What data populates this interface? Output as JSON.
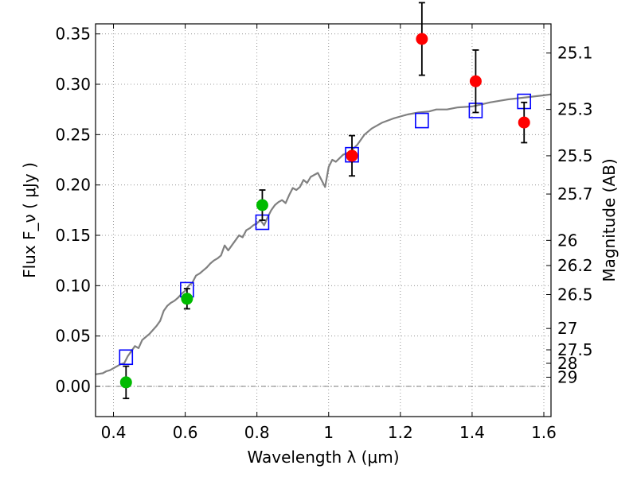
{
  "chart_data": {
    "type": "scatter",
    "xlabel": "Wavelength  λ (μm)",
    "ylabel": "Flux  F_ν  ( μJy )",
    "y2label": "Magnitude (AB)",
    "xlim": [
      0.35,
      1.62
    ],
    "ylim": [
      -0.03,
      0.36
    ],
    "grid": true,
    "x_ticks": [
      0.4,
      0.6,
      0.8,
      1.0,
      1.2,
      1.4,
      1.6
    ],
    "x_tick_labels": [
      "0.4",
      "0.6",
      "0.8",
      "1",
      "1.2",
      "1.4",
      "1.6"
    ],
    "y_ticks": [
      0.0,
      0.05,
      0.1,
      0.15,
      0.2,
      0.25,
      0.3,
      0.35
    ],
    "y_tick_labels": [
      "0.00",
      "0.05",
      "0.10",
      "0.15",
      "0.20",
      "0.25",
      "0.30",
      "0.35"
    ],
    "magnitude_ticks": [
      {
        "label": "25.1",
        "flux": 0.331
      },
      {
        "label": "25.3",
        "flux": 0.275
      },
      {
        "label": "25.5",
        "flux": 0.229
      },
      {
        "label": "25.7",
        "flux": 0.191
      },
      {
        "label": "26",
        "flux": 0.145
      },
      {
        "label": "26.2",
        "flux": 0.12
      },
      {
        "label": "26.5",
        "flux": 0.0912
      },
      {
        "label": "27",
        "flux": 0.0575
      },
      {
        "label": "27.5",
        "flux": 0.0363
      },
      {
        "label": "28",
        "flux": 0.0229
      },
      {
        "label": "29",
        "flux": 0.0091
      }
    ],
    "colors": {
      "model_line": "#808080",
      "model_squares": "#0000ff",
      "green_points": "#00bb00",
      "red_points": "#ff0000",
      "errorbars": "#000000",
      "grid": "#808080"
    },
    "series": [
      {
        "kind": "line",
        "x": [
          0.35,
          0.37,
          0.38,
          0.39,
          0.4,
          0.41,
          0.42,
          0.43,
          0.44,
          0.45,
          0.46,
          0.47,
          0.48,
          0.49,
          0.5,
          0.52,
          0.53,
          0.54,
          0.55,
          0.56,
          0.57,
          0.58,
          0.59,
          0.6,
          0.61,
          0.62,
          0.63,
          0.64,
          0.65,
          0.66,
          0.67,
          0.68,
          0.69,
          0.7,
          0.71,
          0.72,
          0.73,
          0.74,
          0.75,
          0.76,
          0.77,
          0.78,
          0.79,
          0.8,
          0.81,
          0.82,
          0.83,
          0.84,
          0.85,
          0.86,
          0.87,
          0.88,
          0.89,
          0.9,
          0.91,
          0.92,
          0.93,
          0.94,
          0.95,
          0.96,
          0.97,
          0.98,
          0.99,
          1.0,
          1.01,
          1.02,
          1.04,
          1.06,
          1.08,
          1.1,
          1.12,
          1.15,
          1.18,
          1.2,
          1.22,
          1.25,
          1.28,
          1.3,
          1.33,
          1.36,
          1.4,
          1.45,
          1.5,
          1.55,
          1.6,
          1.62
        ],
        "y": [
          0.012,
          0.013,
          0.015,
          0.016,
          0.018,
          0.02,
          0.022,
          0.023,
          0.03,
          0.035,
          0.04,
          0.038,
          0.046,
          0.049,
          0.052,
          0.06,
          0.065,
          0.075,
          0.08,
          0.083,
          0.085,
          0.088,
          0.092,
          0.095,
          0.1,
          0.103,
          0.11,
          0.112,
          0.115,
          0.118,
          0.122,
          0.125,
          0.127,
          0.13,
          0.14,
          0.135,
          0.14,
          0.145,
          0.15,
          0.148,
          0.155,
          0.157,
          0.16,
          0.162,
          0.165,
          0.16,
          0.168,
          0.175,
          0.18,
          0.183,
          0.185,
          0.182,
          0.19,
          0.197,
          0.195,
          0.198,
          0.205,
          0.202,
          0.208,
          0.21,
          0.212,
          0.205,
          0.198,
          0.218,
          0.225,
          0.223,
          0.23,
          0.233,
          0.24,
          0.25,
          0.256,
          0.262,
          0.266,
          0.268,
          0.27,
          0.272,
          0.273,
          0.275,
          0.275,
          0.277,
          0.278,
          0.282,
          0.285,
          0.287,
          0.289,
          0.29
        ]
      },
      {
        "kind": "squares",
        "x": [
          0.435,
          0.605,
          0.815,
          1.065,
          1.26,
          1.41,
          1.545
        ],
        "y": [
          0.029,
          0.096,
          0.163,
          0.23,
          0.264,
          0.274,
          0.283
        ]
      },
      {
        "kind": "points",
        "color": "green",
        "x": [
          0.435,
          0.605,
          0.815
        ],
        "y": [
          0.004,
          0.087,
          0.18
        ],
        "yerr": [
          0.016,
          0.01,
          0.015
        ]
      },
      {
        "kind": "points",
        "color": "red",
        "x": [
          1.065,
          1.26,
          1.41,
          1.545
        ],
        "y": [
          0.229,
          0.345,
          0.303,
          0.262
        ],
        "yerr": [
          0.02,
          0.036,
          0.031,
          0.02
        ]
      }
    ]
  }
}
